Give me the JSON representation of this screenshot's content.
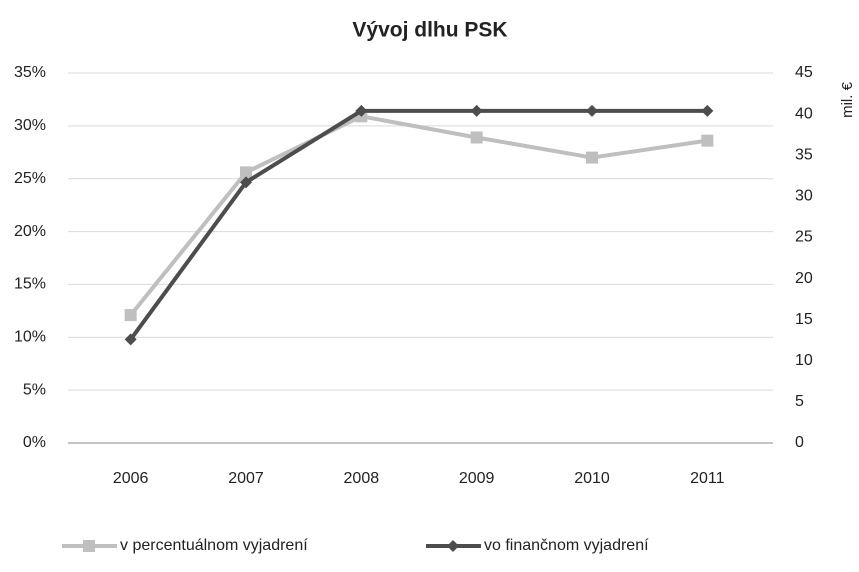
{
  "chart_data": {
    "type": "line",
    "title": "Vývoj dlhu PSK",
    "categories": [
      "2006",
      "2007",
      "2008",
      "2009",
      "2010",
      "2011"
    ],
    "series": [
      {
        "name": "v percentuálnom vyjadrení",
        "color": "#bfbfbf",
        "marker": "square",
        "values": [
          12.1,
          25.6,
          30.9,
          28.9,
          27.0,
          28.6
        ]
      },
      {
        "name": "vo finančnom  vyjadrení",
        "color": "#4d4d4d",
        "marker": "diamond",
        "axis": "y2",
        "values": [
          12.6,
          31.7,
          40.4,
          40.4,
          40.4,
          40.4
        ]
      }
    ],
    "ylim": [
      0,
      35
    ],
    "yticks": [
      {
        "value": 0,
        "label": "0%"
      },
      {
        "value": 5,
        "label": "5%"
      },
      {
        "value": 10,
        "label": "10%"
      },
      {
        "value": 15,
        "label": "15%"
      },
      {
        "value": 20,
        "label": "20%"
      },
      {
        "value": 25,
        "label": "25%"
      },
      {
        "value": 30,
        "label": "30%"
      },
      {
        "value": 35,
        "label": "35%"
      }
    ],
    "y2lim": [
      0,
      45
    ],
    "y2ticks": [
      0,
      5,
      10,
      15,
      20,
      25,
      30,
      35,
      40,
      45
    ],
    "y2label": "mil. €",
    "grid": true,
    "legend": "bottom"
  }
}
